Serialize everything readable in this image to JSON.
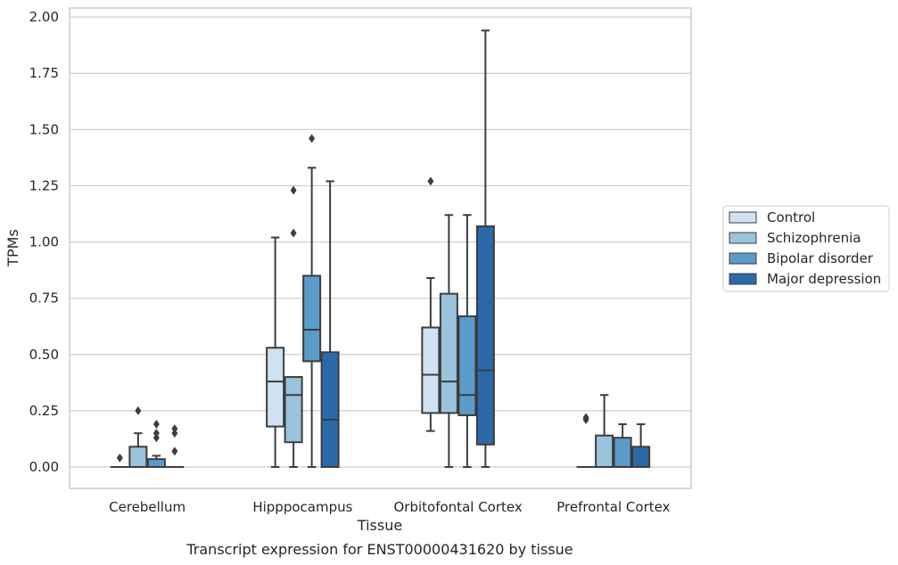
{
  "chart_data": {
    "type": "box",
    "caption": "Transcript expression for ENST00000431620 by tissue",
    "xlabel": "Tissue",
    "ylabel": "TPMs",
    "ylim": [
      -0.095,
      2.04
    ],
    "yticks": [
      "0.00",
      "0.25",
      "0.50",
      "0.75",
      "1.00",
      "1.25",
      "1.50",
      "1.75",
      "2.00"
    ],
    "grid": "horizontal",
    "legend_position": "right",
    "categories": [
      "Cerebellum",
      "Hipppocampus",
      "Orbitofontal Cortex",
      "Prefrontal Cortex"
    ],
    "series": [
      {
        "name": "Control",
        "color": "#d0e1f2",
        "boxes": [
          {
            "whislo": 0,
            "q1": 0,
            "med": 0,
            "q3": 0,
            "whishi": 0,
            "fliers": [
              0.04
            ]
          },
          {
            "whislo": 0,
            "q1": 0.18,
            "med": 0.38,
            "q3": 0.53,
            "whishi": 1.02,
            "fliers": []
          },
          {
            "whislo": 0.16,
            "q1": 0.24,
            "med": 0.41,
            "q3": 0.62,
            "whishi": 0.84,
            "fliers": [
              1.27
            ]
          },
          {
            "whislo": 0,
            "q1": 0,
            "med": 0,
            "q3": 0,
            "whishi": 0,
            "fliers": [
              0.21,
              0.22
            ]
          }
        ]
      },
      {
        "name": "Schizophrenia",
        "color": "#9ac3dd",
        "boxes": [
          {
            "whislo": 0,
            "q1": 0,
            "med": 0,
            "q3": 0.09,
            "whishi": 0.15,
            "fliers": [
              0.25
            ]
          },
          {
            "whislo": 0,
            "q1": 0.11,
            "med": 0.32,
            "q3": 0.4,
            "whishi": 0.4,
            "fliers": [
              1.04,
              1.23
            ]
          },
          {
            "whislo": 0,
            "q1": 0.24,
            "med": 0.38,
            "q3": 0.77,
            "whishi": 1.12,
            "fliers": []
          },
          {
            "whislo": 0,
            "q1": 0,
            "med": 0,
            "q3": 0.14,
            "whishi": 0.32,
            "fliers": []
          }
        ]
      },
      {
        "name": "Bipolar disorder",
        "color": "#5a9bc9",
        "boxes": [
          {
            "whislo": 0,
            "q1": 0,
            "med": 0,
            "q3": 0.035,
            "whishi": 0.05,
            "fliers": [
              0.13,
              0.15,
              0.19
            ]
          },
          {
            "whislo": 0,
            "q1": 0.47,
            "med": 0.61,
            "q3": 0.85,
            "whishi": 1.33,
            "fliers": [
              1.46
            ]
          },
          {
            "whislo": 0,
            "q1": 0.23,
            "med": 0.32,
            "q3": 0.67,
            "whishi": 1.12,
            "fliers": []
          },
          {
            "whislo": 0,
            "q1": 0,
            "med": 0,
            "q3": 0.13,
            "whishi": 0.19,
            "fliers": []
          }
        ]
      },
      {
        "name": "Major depression",
        "color": "#2b6aa8",
        "boxes": [
          {
            "whislo": 0,
            "q1": 0,
            "med": 0,
            "q3": 0,
            "whishi": 0,
            "fliers": [
              0.07,
              0.15,
              0.17
            ]
          },
          {
            "whislo": 0,
            "q1": 0,
            "med": 0.21,
            "q3": 0.51,
            "whishi": 1.27,
            "fliers": []
          },
          {
            "whislo": 0,
            "q1": 0.1,
            "med": 0.43,
            "q3": 1.07,
            "whishi": 1.94,
            "fliers": []
          },
          {
            "whislo": 0,
            "q1": 0,
            "med": 0,
            "q3": 0.09,
            "whishi": 0.19,
            "fliers": []
          }
        ]
      }
    ]
  }
}
